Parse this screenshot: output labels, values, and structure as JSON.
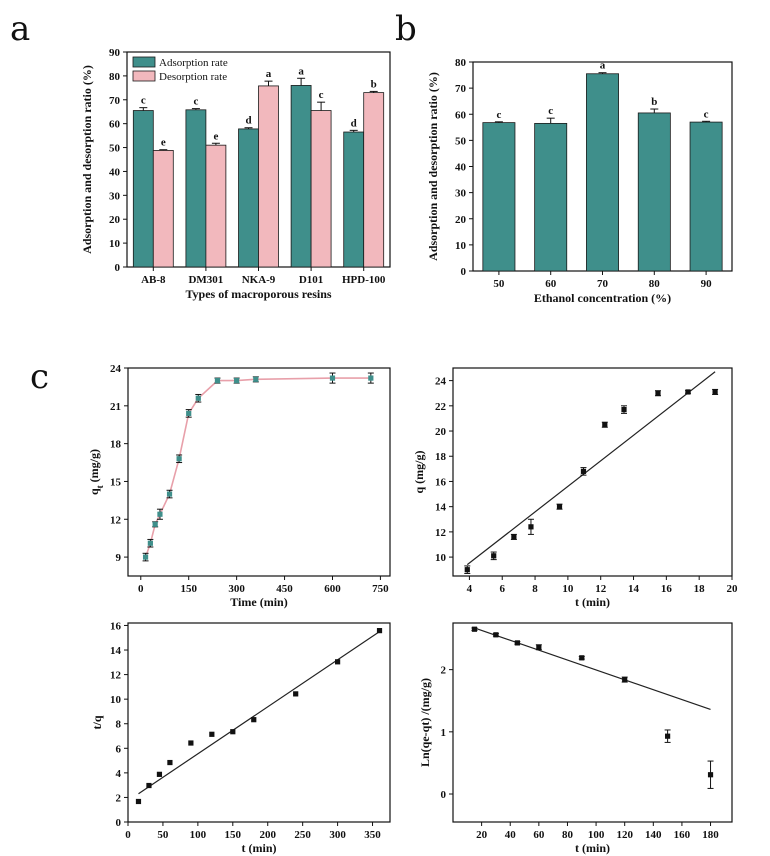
{
  "panel_letters": {
    "a": "a",
    "b": "b",
    "c": "c"
  },
  "colors": {
    "teal": "#3f8f8b",
    "pink": "#f2b8bd",
    "line_pink": "#e8a0aa",
    "marker": "#111111"
  },
  "chart_data": [
    {
      "id": "a",
      "type": "bar",
      "title": "",
      "xlabel": "Types of macroporous resins",
      "ylabel": "Adsorption and desorption ratio (%)",
      "ylim": [
        0,
        90
      ],
      "yticks": [
        0,
        10,
        20,
        30,
        40,
        50,
        60,
        70,
        80,
        90
      ],
      "categories": [
        "AB-8",
        "DM301",
        "NKA-9",
        "D101",
        "HPD-100"
      ],
      "legend_position": "top-left",
      "series": [
        {
          "name": "Adsorption rate",
          "color": "#3f8f8b",
          "values": [
            65.5,
            65.8,
            57.8,
            76,
            56.5
          ],
          "errors": [
            1.2,
            0.5,
            0.5,
            3,
            0.7
          ],
          "labels": [
            "c",
            "c",
            "d",
            "a",
            "d"
          ]
        },
        {
          "name": "Desorption rate",
          "color": "#f2b8bd",
          "values": [
            48.8,
            51,
            75.8,
            65.5,
            73
          ],
          "errors": [
            0.3,
            0.8,
            2,
            3.5,
            0.5
          ],
          "labels": [
            "e",
            "e",
            "a",
            "c",
            "b"
          ]
        }
      ]
    },
    {
      "id": "b",
      "type": "bar",
      "title": "",
      "xlabel": "Ethanol concentration (%)",
      "ylabel": "Adsorption and desorption ratio (%)",
      "ylim": [
        0,
        80
      ],
      "yticks": [
        0,
        10,
        20,
        30,
        40,
        50,
        60,
        70,
        80
      ],
      "categories": [
        "50",
        "60",
        "70",
        "80",
        "90"
      ],
      "series": [
        {
          "name": "Ratio",
          "color": "#3f8f8b",
          "values": [
            56.8,
            56.5,
            75.5,
            60.5,
            57
          ],
          "errors": [
            0.3,
            2,
            0.4,
            1.5,
            0.3
          ],
          "labels": [
            "c",
            "c",
            "a",
            "b",
            "c"
          ]
        }
      ]
    },
    {
      "id": "c1",
      "type": "line",
      "xlabel": "Time (min)",
      "ylabel": "qt (mg/g)",
      "ylabel_main": "q",
      "ylabel_sub": "t",
      "ylabel_rest": " (mg/g)",
      "xlim": [
        -40,
        780
      ],
      "ylim": [
        7.5,
        24
      ],
      "xticks": [
        0,
        150,
        300,
        450,
        600,
        750
      ],
      "yticks": [
        9,
        12,
        15,
        18,
        21,
        24
      ],
      "series": [
        {
          "name": "qt",
          "x": [
            15,
            30,
            45,
            60,
            90,
            120,
            150,
            180,
            240,
            300,
            360,
            600,
            720
          ],
          "y": [
            9.0,
            10.1,
            11.6,
            12.4,
            14.0,
            16.8,
            20.4,
            21.6,
            23.0,
            23.0,
            23.1,
            23.2,
            23.2
          ],
          "errors": [
            0.3,
            0.3,
            0.2,
            0.4,
            0.3,
            0.3,
            0.3,
            0.3,
            0.2,
            0.2,
            0.2,
            0.4,
            0.4
          ]
        }
      ]
    },
    {
      "id": "c2",
      "type": "scatter",
      "xlabel": "t (min)",
      "ylabel": "q (mg/g)",
      "xlim": [
        3,
        20
      ],
      "ylim": [
        8.5,
        25
      ],
      "xticks": [
        4,
        6,
        8,
        10,
        12,
        14,
        16,
        18,
        20
      ],
      "yticks": [
        10,
        12,
        14,
        16,
        18,
        20,
        22,
        24
      ],
      "series": [
        {
          "name": "q",
          "x": [
            3.87,
            5.48,
            6.71,
            7.75,
            9.49,
            10.95,
            12.25,
            13.42,
            15.49,
            17.32,
            18.97
          ],
          "y": [
            9.0,
            10.1,
            11.6,
            12.4,
            14.0,
            16.8,
            20.5,
            21.7,
            23.0,
            23.1,
            23.1
          ],
          "errors": [
            0.3,
            0.3,
            0.2,
            0.6,
            0.2,
            0.3,
            0.2,
            0.3,
            0.2,
            0.1,
            0.2
          ]
        }
      ],
      "fit_line": {
        "x": [
          3.87,
          18.97
        ],
        "y": [
          9.4,
          24.7
        ]
      }
    },
    {
      "id": "c3",
      "type": "scatter",
      "xlabel": "t (min)",
      "ylabel": "t/q",
      "xlim": [
        0,
        375
      ],
      "ylim": [
        0,
        16.2
      ],
      "xticks": [
        0,
        50,
        100,
        150,
        200,
        250,
        300,
        350
      ],
      "yticks": [
        0,
        2,
        4,
        6,
        8,
        10,
        12,
        14,
        16
      ],
      "series": [
        {
          "name": "t/q",
          "x": [
            15,
            30,
            45,
            60,
            90,
            120,
            150,
            180,
            240,
            300,
            360
          ],
          "y": [
            1.67,
            2.97,
            3.88,
            4.84,
            6.43,
            7.14,
            7.35,
            8.33,
            10.43,
            13.04,
            15.58
          ]
        }
      ],
      "fit_line": {
        "x": [
          15,
          360
        ],
        "y": [
          2.3,
          15.5
        ]
      }
    },
    {
      "id": "c4",
      "type": "scatter",
      "xlabel": "t (min)",
      "ylabel": "Ln(qe-qt) /(mg/g)",
      "xlim": [
        0,
        195
      ],
      "ylim": [
        -0.45,
        2.75
      ],
      "xticks": [
        20,
        40,
        60,
        80,
        100,
        120,
        140,
        160,
        180
      ],
      "yticks": [
        0,
        1,
        2
      ],
      "series": [
        {
          "name": "Ln(qe-qt)",
          "x": [
            15,
            30,
            45,
            60,
            90,
            120,
            150,
            180
          ],
          "y": [
            2.65,
            2.56,
            2.43,
            2.36,
            2.19,
            1.84,
            0.93,
            0.31
          ],
          "errors": [
            0.02,
            0.02,
            0.02,
            0.04,
            0.02,
            0.04,
            0.1,
            0.22
          ]
        }
      ],
      "fit_line": {
        "x": [
          15,
          180
        ],
        "y": [
          2.67,
          1.36
        ]
      }
    }
  ]
}
